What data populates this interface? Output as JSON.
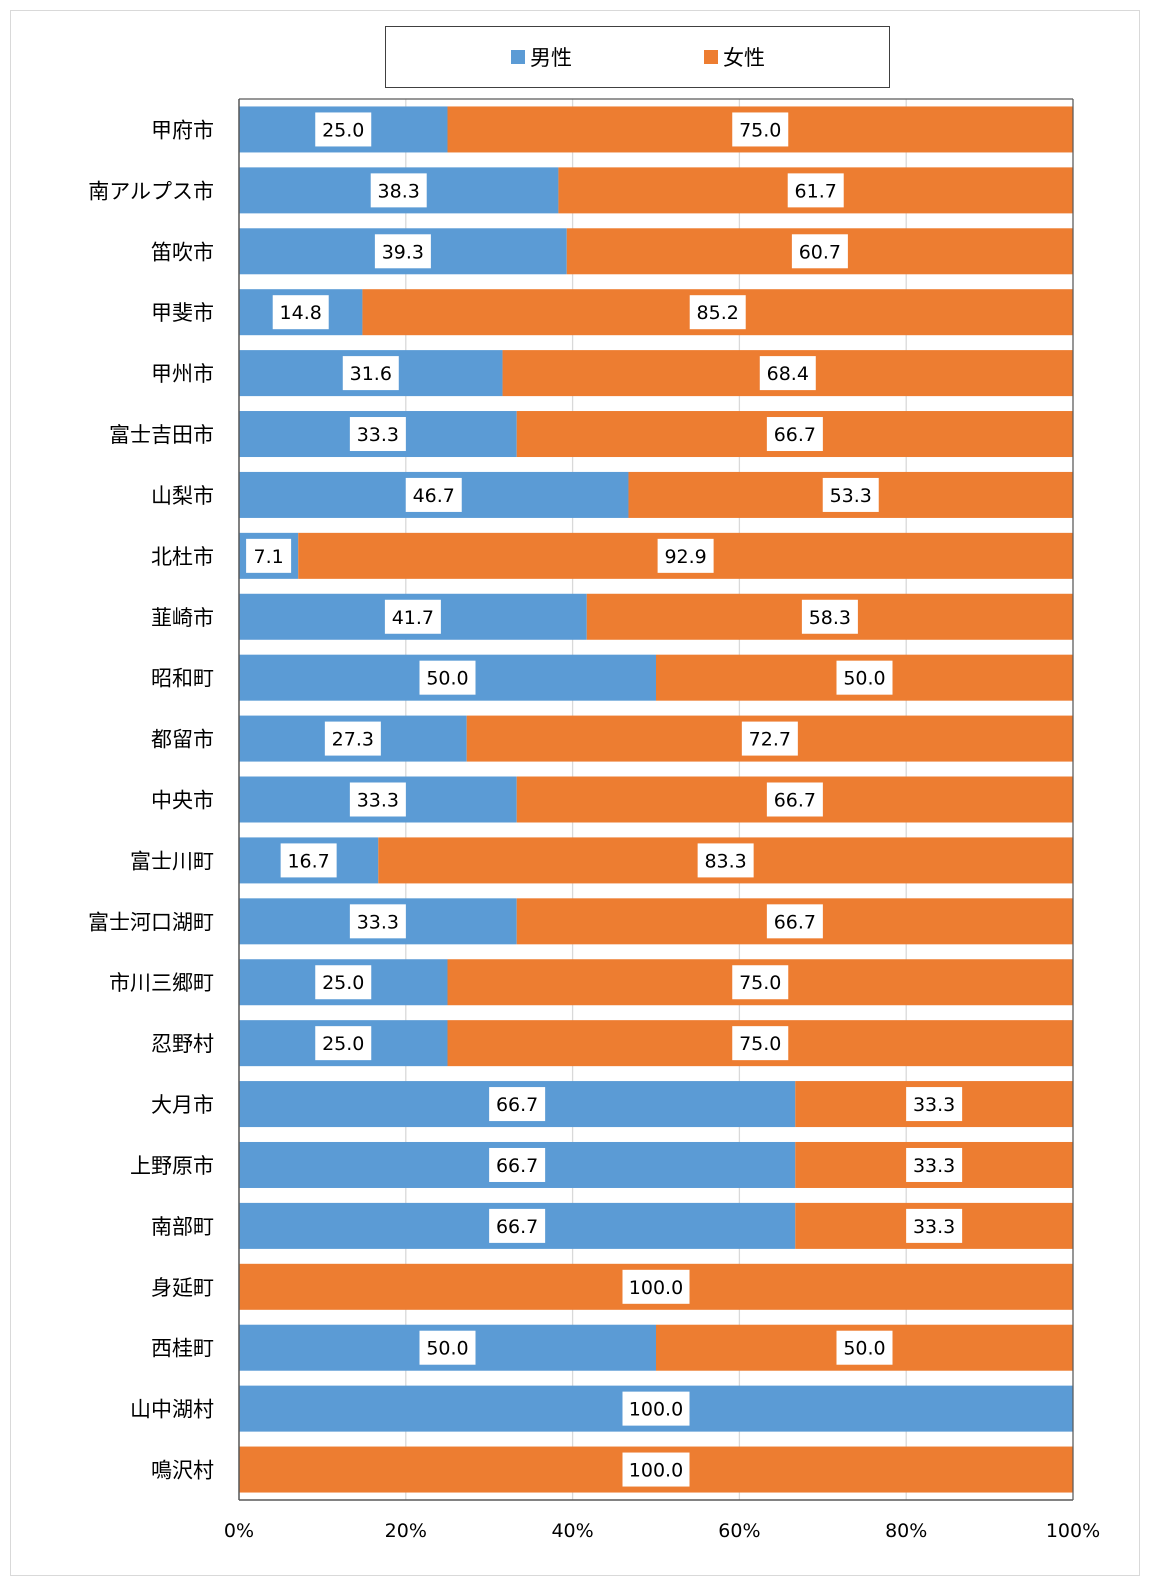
{
  "chart_data": {
    "type": "bar",
    "orientation": "horizontal",
    "stacked": true,
    "percent": true,
    "title": "",
    "xlabel": "",
    "ylabel": "",
    "xlim": [
      0,
      100
    ],
    "x_ticks": [
      "0%",
      "20%",
      "40%",
      "60%",
      "80%",
      "100%"
    ],
    "grid": true,
    "legend_position": "top",
    "categories": [
      "甲府市",
      "南アルプス市",
      "笛吹市",
      "甲斐市",
      "甲州市",
      "富士吉田市",
      "山梨市",
      "北杜市",
      "韮崎市",
      "昭和町",
      "都留市",
      "中央市",
      "富士川町",
      "富士河口湖町",
      "市川三郷町",
      "忍野村",
      "大月市",
      "上野原市",
      "南部町",
      "身延町",
      "西桂町",
      "山中湖村",
      "鳴沢村"
    ],
    "series": [
      {
        "name": "男性",
        "color": "#5b9bd5",
        "values": [
          25.0,
          38.3,
          39.3,
          14.8,
          31.6,
          33.3,
          46.7,
          7.1,
          41.7,
          50.0,
          27.3,
          33.3,
          16.7,
          33.3,
          25.0,
          25.0,
          66.7,
          66.7,
          66.7,
          0,
          50.0,
          100.0,
          0
        ],
        "labels": [
          "25.0",
          "38.3",
          "39.3",
          "14.8",
          "31.6",
          "33.3",
          "46.7",
          "7.1",
          "41.7",
          "50.0",
          "27.3",
          "33.3",
          "16.7",
          "33.3",
          "25.0",
          "25.0",
          "66.7",
          "66.7",
          "66.7",
          "",
          "50.0",
          "100.0",
          ""
        ]
      },
      {
        "name": "女性",
        "color": "#ed7d31",
        "values": [
          75.0,
          61.7,
          60.7,
          85.2,
          68.4,
          66.7,
          53.3,
          92.9,
          58.3,
          50.0,
          72.7,
          66.7,
          83.3,
          66.7,
          75.0,
          75.0,
          33.3,
          33.3,
          33.3,
          100.0,
          50.0,
          0,
          100.0
        ],
        "labels": [
          "75.0",
          "61.7",
          "60.7",
          "85.2",
          "68.4",
          "66.7",
          "53.3",
          "92.9",
          "58.3",
          "50.0",
          "72.7",
          "66.7",
          "83.3",
          "66.7",
          "75.0",
          "75.0",
          "33.3",
          "33.3",
          "33.3",
          "100.0",
          "50.0",
          "",
          "100.0"
        ]
      }
    ]
  }
}
